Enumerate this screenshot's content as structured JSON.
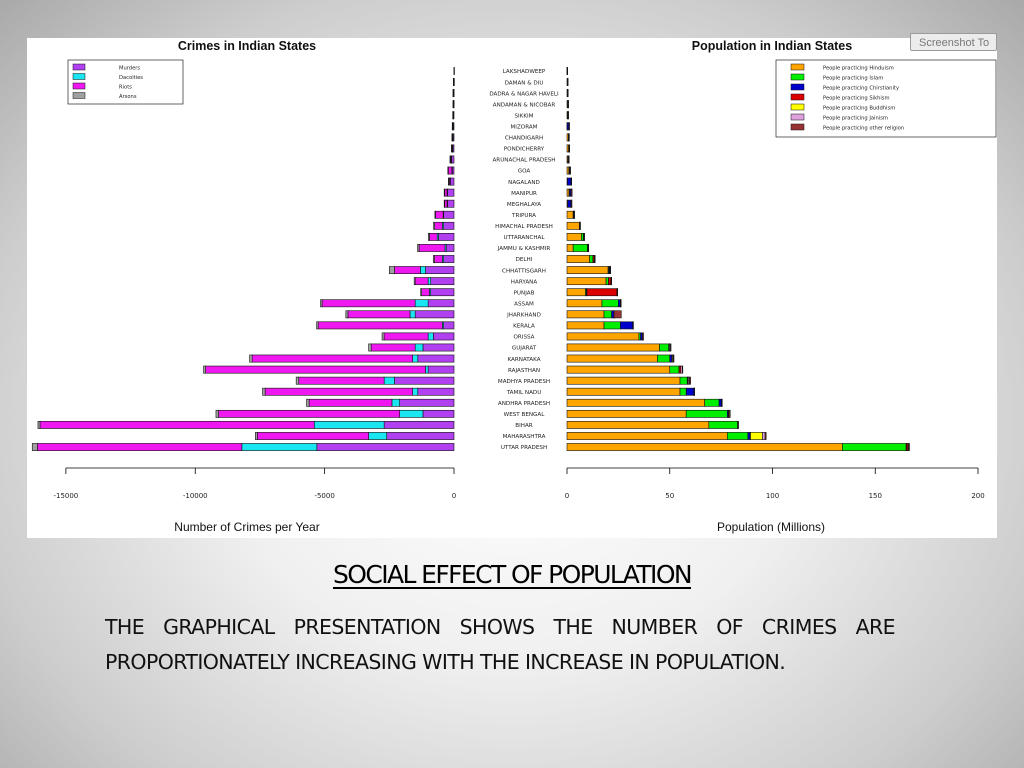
{
  "slide": {
    "title": "SOCIAL EFFECT OF POPULATION",
    "body": "THE GRAPHICAL PRESENTATION SHOWS THE NUMBER OF CRIMES ARE PROPORTIONATELY INCREASING WITH THE INCREASE IN POPULATION.",
    "tab_label": "Screenshot To"
  },
  "chart_data": [
    {
      "type": "bar",
      "orientation": "horizontal",
      "stacked": true,
      "title": "Crimes in Indian States",
      "xlabel": "Number of Crimes per Year",
      "xlim": [
        -16000,
        0
      ],
      "xticks": [
        -15000,
        -10000,
        -5000,
        0
      ],
      "legend_position": "top-left",
      "categories": [
        "UTTAR PRADESH",
        "MAHARASHTRA",
        "BIHAR",
        "WEST BENGAL",
        "ANDHRA PRADESH",
        "TAMIL NADU",
        "MADHYA PRADESH",
        "RAJASTHAN",
        "KARNATAKA",
        "GUJARAT",
        "ORISSA",
        "KERALA",
        "JHARKHAND",
        "ASSAM",
        "PUNJAB",
        "HARYANA",
        "CHHATTISGARH",
        "DELHI",
        "JAMMU & KASHMIR",
        "UTTARANCHAL",
        "HIMACHAL PRADESH",
        "TRIPURA",
        "MEGHALAYA",
        "MANIPUR",
        "NAGALAND",
        "GOA",
        "ARUNACHAL PRADESH",
        "PONDICHERRY",
        "CHANDIGARH",
        "MIZORAM",
        "SIKKIM",
        "ANDAMAN & NICOBAR",
        "DADRA & NAGAR HAVELI",
        "DAMAN & DIU",
        "LAKSHADWEEP"
      ],
      "series": [
        {
          "name": "Murders",
          "color": "#b040f0",
          "values": [
            -5300,
            -2600,
            -2700,
            -1200,
            -2100,
            -1400,
            -2300,
            -1000,
            -1400,
            -1200,
            -800,
            -400,
            -1500,
            -1000,
            -900,
            -900,
            -1100,
            -400,
            -300,
            -600,
            -400,
            -400,
            -250,
            -250,
            -150,
            -80,
            -100,
            -60,
            -50,
            -40,
            -30,
            -20,
            -20,
            -10,
            -5
          ]
        },
        {
          "name": "Dacoities",
          "color": "#19e6f0",
          "values": [
            -2900,
            -700,
            -2700,
            -900,
            -300,
            -200,
            -400,
            -100,
            -200,
            -300,
            -200,
            -50,
            -200,
            -500,
            -50,
            -100,
            -200,
            -50,
            -50,
            -50,
            -50,
            -20,
            -20,
            -20,
            -10,
            -5,
            -10,
            -5,
            -5,
            -5,
            -5,
            -5,
            -5,
            -5,
            0
          ]
        },
        {
          "name": "Riots",
          "color": "#f018f0",
          "values": [
            -7900,
            -4300,
            -10600,
            -7000,
            -3200,
            -5700,
            -3300,
            -8500,
            -6200,
            -1700,
            -1700,
            -4800,
            -2400,
            -3600,
            -300,
            -500,
            -1000,
            -300,
            -1000,
            -300,
            -300,
            -300,
            -100,
            -100,
            -50,
            -150,
            -40,
            -30,
            -20,
            -20,
            -10,
            -10,
            -10,
            -5,
            0
          ]
        },
        {
          "name": "Arsons",
          "color": "#a0a0a0",
          "values": [
            -200,
            -80,
            -80,
            -100,
            -100,
            -100,
            -100,
            -80,
            -100,
            -100,
            -80,
            -60,
            -80,
            -60,
            -40,
            -40,
            -200,
            -50,
            -60,
            -40,
            -40,
            -20,
            -10,
            -10,
            -5,
            -5,
            -5,
            -5,
            -5,
            -5,
            -5,
            -5,
            -5,
            -5,
            0
          ]
        }
      ]
    },
    {
      "type": "bar",
      "orientation": "horizontal",
      "stacked": true,
      "title": "Population in Indian States",
      "xlabel": "Population (Millions)",
      "xlim": [
        0,
        200
      ],
      "xticks": [
        0,
        50,
        100,
        150,
        200
      ],
      "legend_position": "top-right",
      "categories": [
        "UTTAR PRADESH",
        "MAHARASHTRA",
        "BIHAR",
        "WEST BENGAL",
        "ANDHRA PRADESH",
        "TAMIL NADU",
        "MADHYA PRADESH",
        "RAJASTHAN",
        "KARNATAKA",
        "GUJARAT",
        "ORISSA",
        "KERALA",
        "JHARKHAND",
        "ASSAM",
        "PUNJAB",
        "HARYANA",
        "CHHATTISGARH",
        "DELHI",
        "JAMMU & KASHMIR",
        "UTTARANCHAL",
        "HIMACHAL PRADESH",
        "TRIPURA",
        "MEGHALAYA",
        "MANIPUR",
        "NAGALAND",
        "GOA",
        "ARUNACHAL PRADESH",
        "PONDICHERRY",
        "CHANDIGARH",
        "MIZORAM",
        "SIKKIM",
        "ANDAMAN & NICOBAR",
        "DADRA & NAGAR HAVELI",
        "DAMAN & DIU",
        "LAKSHADWEEP"
      ],
      "series": [
        {
          "name": "People practicing Hinduism",
          "color": "#ffa500",
          "values": [
            134,
            78,
            69,
            58,
            67,
            55,
            55,
            50,
            44,
            45,
            35,
            18,
            18,
            17,
            9,
            19,
            20,
            11,
            3,
            7,
            6,
            3,
            0.3,
            1,
            0.2,
            0.9,
            0.4,
            0.8,
            0.7,
            0.05,
            0.3,
            0.3,
            0.2,
            0.15,
            0.01
          ]
        },
        {
          "name": "People practicing Islam",
          "color": "#00ee00",
          "values": [
            31,
            10,
            14,
            20,
            7,
            3,
            3.5,
            4.5,
            6,
            4.5,
            0.8,
            8,
            3.7,
            8,
            0.4,
            1.2,
            0.4,
            1.6,
            7,
            1,
            0.1,
            0.2,
            0.1,
            0.2,
            0.04,
            0.1,
            0.02,
            0.1,
            0.03,
            0.01,
            0.01,
            0.03,
            0.01,
            0.01,
            0.06
          ]
        },
        {
          "name": "People practicing Chirstianity",
          "color": "#0000cc",
          "values": [
            0.2,
            1.1,
            0.1,
            0.5,
            1.2,
            3.8,
            0.2,
            0.1,
            1,
            0.3,
            0.9,
            6,
            1.1,
            1,
            0.3,
            0.03,
            0.4,
            0.1,
            0.02,
            0.03,
            0.01,
            0.1,
            1.6,
            0.8,
            1.8,
            0.4,
            0.2,
            0.1,
            0.02,
            0.8,
            0.04,
            0.1,
            0.01,
            0.01,
            0.001
          ]
        },
        {
          "name": "People practicing Sikhism",
          "color": "#dd0000",
          "values": [
            0.7,
            0.2,
            0.02,
            0.07,
            0.03,
            0.01,
            0.15,
            0.8,
            0.02,
            0.05,
            0.02,
            0.01,
            0.08,
            0.02,
            14.6,
            1.2,
            0.07,
            0.6,
            0.2,
            0.2,
            0.07,
            0.001,
            0.003,
            0.002,
            0.001,
            0.001,
            0.002,
            0.001,
            0.1,
            0.001,
            0.001,
            0.001,
            0.001,
            0.001,
            0.0
          ]
        },
        {
          "name": "People practicing Buddhism",
          "color": "#ffff00",
          "values": [
            0.3,
            5.8,
            0.02,
            0.2,
            0.03,
            0.01,
            0.2,
            0.01,
            0.4,
            0.02,
            0.01,
            0.002,
            0.005,
            0.05,
            0.04,
            0.01,
            0.07,
            0.02,
            0.1,
            0.01,
            0.08,
            0.1,
            0.01,
            0.002,
            0.001,
            0.001,
            0.14,
            0.001,
            0.001,
            0.07,
            0.15,
            0.001,
            0.001,
            0.001,
            0.0
          ]
        },
        {
          "name": "People practicing Jainism",
          "color": "#dda0dd",
          "values": [
            0.2,
            1.3,
            0.02,
            0.06,
            0.04,
            0.08,
            0.5,
            0.7,
            0.4,
            0.5,
            0.01,
            0.005,
            0.02,
            0.02,
            0.04,
            0.06,
            0.06,
            0.15,
            0.002,
            0.01,
            0.001,
            0.001,
            0.001,
            0.001,
            0.001,
            0.001,
            0.001,
            0.001,
            0.001,
            0.001,
            0.001,
            0.001,
            0.001,
            0.001,
            0.0
          ]
        },
        {
          "name": "People practicing other religion",
          "color": "#993333",
          "values": [
            0.1,
            0.5,
            0.1,
            0.6,
            0.2,
            0.1,
            0.6,
            0.1,
            0.1,
            0.1,
            0.5,
            0.05,
            3.5,
            0.1,
            0.05,
            0.05,
            0.15,
            0.05,
            0.05,
            0.02,
            0.02,
            0.01,
            0.4,
            0.5,
            0.05,
            0.01,
            0.3,
            0.01,
            0.01,
            0.01,
            0.01,
            0.01,
            0.01,
            0.01,
            0.0
          ]
        }
      ]
    }
  ]
}
